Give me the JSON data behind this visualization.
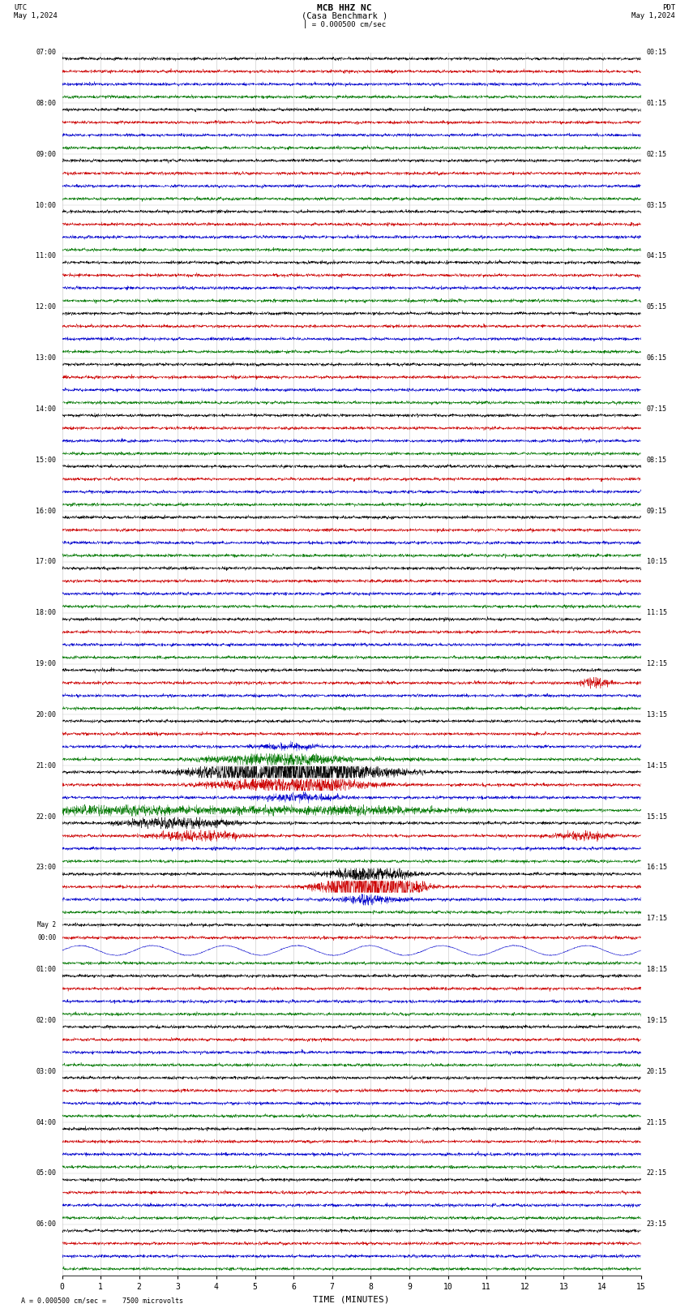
{
  "title_line1": "MCB HHZ NC",
  "title_line2": "(Casa Benchmark )",
  "scale_text": "= 0.000500 cm/sec",
  "footer_text": "= 0.000500 cm/sec =    7500 microvolts",
  "utc_label": "UTC",
  "date_left": "May 1,2024",
  "date_right": "May 1,2024",
  "pdt_label": "PDT",
  "xlabel": "TIME (MINUTES)",
  "bg_color": "#ffffff",
  "grid_color": "#777777",
  "trace_colors": [
    "#000000",
    "#cc0000",
    "#0000cc",
    "#007700"
  ],
  "left_times": [
    "07:00",
    "",
    "",
    "",
    "08:00",
    "",
    "",
    "",
    "09:00",
    "",
    "",
    "",
    "10:00",
    "",
    "",
    "",
    "11:00",
    "",
    "",
    "",
    "12:00",
    "",
    "",
    "",
    "13:00",
    "",
    "",
    "",
    "14:00",
    "",
    "",
    "",
    "15:00",
    "",
    "",
    "",
    "16:00",
    "",
    "",
    "",
    "17:00",
    "",
    "",
    "",
    "18:00",
    "",
    "",
    "",
    "19:00",
    "",
    "",
    "",
    "20:00",
    "",
    "",
    "",
    "21:00",
    "",
    "",
    "",
    "22:00",
    "",
    "",
    "",
    "23:00",
    "",
    "",
    "",
    "May 2\n00:00",
    "",
    "",
    "",
    "01:00",
    "",
    "",
    "",
    "02:00",
    "",
    "",
    "",
    "03:00",
    "",
    "",
    "",
    "04:00",
    "",
    "",
    "",
    "05:00",
    "",
    "",
    "",
    "06:00",
    "",
    ""
  ],
  "right_times": [
    "00:15",
    "",
    "",
    "",
    "01:15",
    "",
    "",
    "",
    "02:15",
    "",
    "",
    "",
    "03:15",
    "",
    "",
    "",
    "04:15",
    "",
    "",
    "",
    "05:15",
    "",
    "",
    "",
    "06:15",
    "",
    "",
    "",
    "07:15",
    "",
    "",
    "",
    "08:15",
    "",
    "",
    "",
    "09:15",
    "",
    "",
    "",
    "10:15",
    "",
    "",
    "",
    "11:15",
    "",
    "",
    "",
    "12:15",
    "",
    "",
    "",
    "13:15",
    "",
    "",
    "",
    "14:15",
    "",
    "",
    "",
    "15:15",
    "",
    "",
    "",
    "16:15",
    "",
    "",
    "",
    "17:15",
    "",
    "",
    "",
    "18:15",
    "",
    "",
    "",
    "19:15",
    "",
    "",
    "",
    "20:15",
    "",
    "",
    "",
    "21:15",
    "",
    "",
    "",
    "22:15",
    "",
    "",
    "",
    "23:15",
    "",
    ""
  ],
  "num_hours": 24,
  "traces_per_hour": 4,
  "xmin": 0,
  "xmax": 15,
  "xticks": [
    0,
    1,
    2,
    3,
    4,
    5,
    6,
    7,
    8,
    9,
    10,
    11,
    12,
    13,
    14,
    15
  ]
}
